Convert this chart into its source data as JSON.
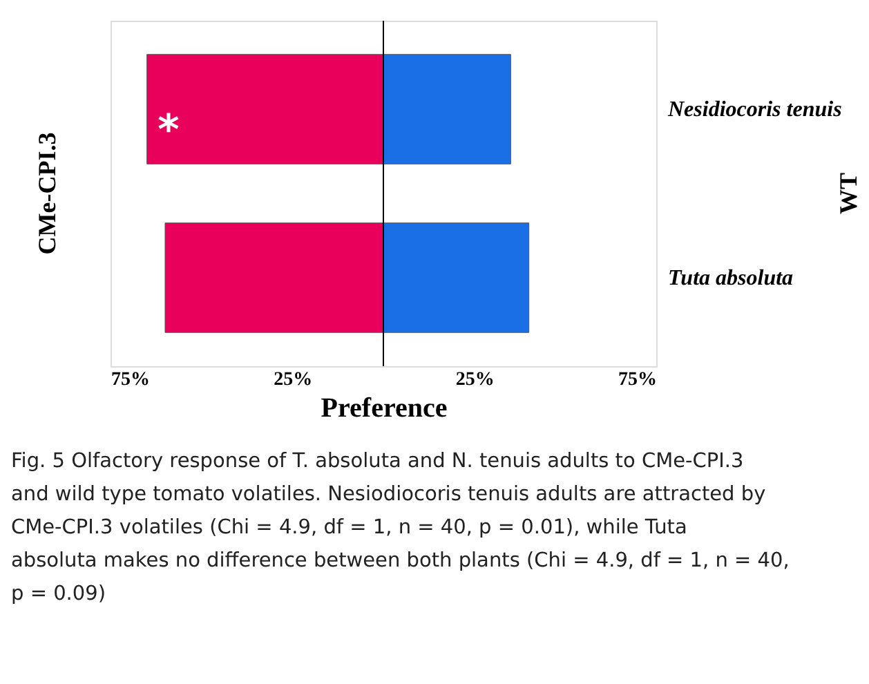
{
  "chart_data": {
    "type": "bar",
    "orientation": "horizontal",
    "stacked": true,
    "categories": [
      "Nesidiocoris tenuis",
      "Tuta absoluta"
    ],
    "series": [
      {
        "color": "#e8005a",
        "values": [
          -65,
          -60
        ]
      },
      {
        "color": "#1a6ee6",
        "values": [
          35,
          40
        ]
      }
    ],
    "xlim": [
      -75,
      75
    ],
    "xticks": [
      {
        "value": -75,
        "label": "75%"
      },
      {
        "value": -25,
        "label": "25%"
      },
      {
        "value": 25,
        "label": "25%"
      },
      {
        "value": 75,
        "label": "75%"
      }
    ],
    "xlabel": "Preference",
    "ylabel": "CMe-CPI.3",
    "y2label": "WT",
    "ref_lines": [
      {
        "axis": "x",
        "value": 0,
        "color": "#000000"
      }
    ],
    "grid": false,
    "annotations": [
      "*",
      "Fig. 5 Olfactory response of T. absoluta and N. tenuis adults to CMe-CPI.3 and wild type tomato volatiles. Nesiodiocoris tenuis adults are attracted by CMe-CPI.3 volatiles (Chi = 4.9, df = 1, n = 40, p = 0.01), while Tuta absoluta makes no difference between both plants (Chi = 4.9, df = 1, n = 40, p = 0.09)"
    ]
  }
}
